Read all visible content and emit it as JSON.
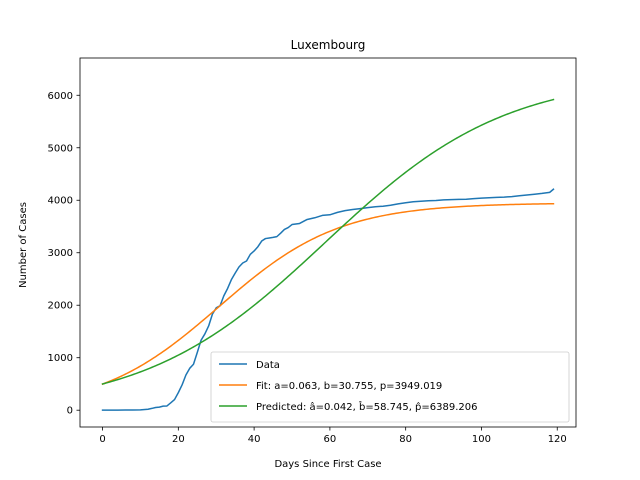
{
  "chart_data": {
    "type": "line",
    "title": "Luxembourg",
    "xlabel": "Days Since First Case",
    "ylabel": "Number of Cases",
    "xlim": [
      -5.95,
      124.95
    ],
    "ylim": [
      -320,
      6710
    ],
    "xticks": [
      0,
      20,
      40,
      60,
      80,
      100,
      120
    ],
    "yticks": [
      0,
      1000,
      2000,
      3000,
      4000,
      5000,
      6000
    ],
    "grid": false,
    "legend_position": "lower-right",
    "series": [
      {
        "name": "Data",
        "color": "#1f77b4",
        "x": [
          0,
          2,
          4,
          6,
          8,
          10,
          12,
          13,
          14,
          15,
          16,
          17,
          18,
          19,
          20,
          21,
          22,
          23,
          24,
          25,
          26,
          27,
          28,
          29,
          30,
          31,
          32,
          33,
          34,
          35,
          36,
          37,
          38,
          39,
          40,
          41,
          42,
          43,
          44,
          45,
          46,
          47,
          48,
          49,
          50,
          52,
          54,
          56,
          58,
          60,
          62,
          64,
          66,
          68,
          70,
          72,
          74,
          76,
          78,
          80,
          82,
          84,
          86,
          88,
          90,
          92,
          94,
          96,
          98,
          100,
          102,
          104,
          106,
          108,
          110,
          112,
          114,
          116,
          118,
          119
        ],
        "y": [
          1,
          1,
          2,
          3,
          5,
          7,
          19,
          34,
          51,
          59,
          77,
          81,
          140,
          203,
          335,
          484,
          670,
          798,
          875,
          1099,
          1333,
          1453,
          1605,
          1831,
          1950,
          1988,
          2178,
          2319,
          2487,
          2612,
          2729,
          2804,
          2843,
          2970,
          3034,
          3115,
          3223,
          3270,
          3281,
          3292,
          3307,
          3373,
          3444,
          3480,
          3537,
          3558,
          3634,
          3666,
          3711,
          3723,
          3769,
          3802,
          3824,
          3840,
          3859,
          3877,
          3886,
          3904,
          3930,
          3952,
          3971,
          3980,
          3990,
          3995,
          4008,
          4012,
          4016,
          4020,
          4032,
          4040,
          4048,
          4055,
          4060,
          4070,
          4085,
          4100,
          4115,
          4130,
          4150,
          4210
        ]
      },
      {
        "name": "Fit: a=0.063, b=30.755, p=3949.019",
        "color": "#ff7f0e",
        "model": {
          "a": 0.063,
          "b": 30.755,
          "p": 3949.019
        },
        "x_range": [
          0,
          119
        ]
      },
      {
        "name": "Predicted: â=0.042, b̂=58.745, p̂=6389.206",
        "color": "#2ca02c",
        "model": {
          "a": 0.042,
          "b": 58.745,
          "p": 6389.206
        },
        "x_range": [
          0,
          119
        ]
      }
    ]
  }
}
